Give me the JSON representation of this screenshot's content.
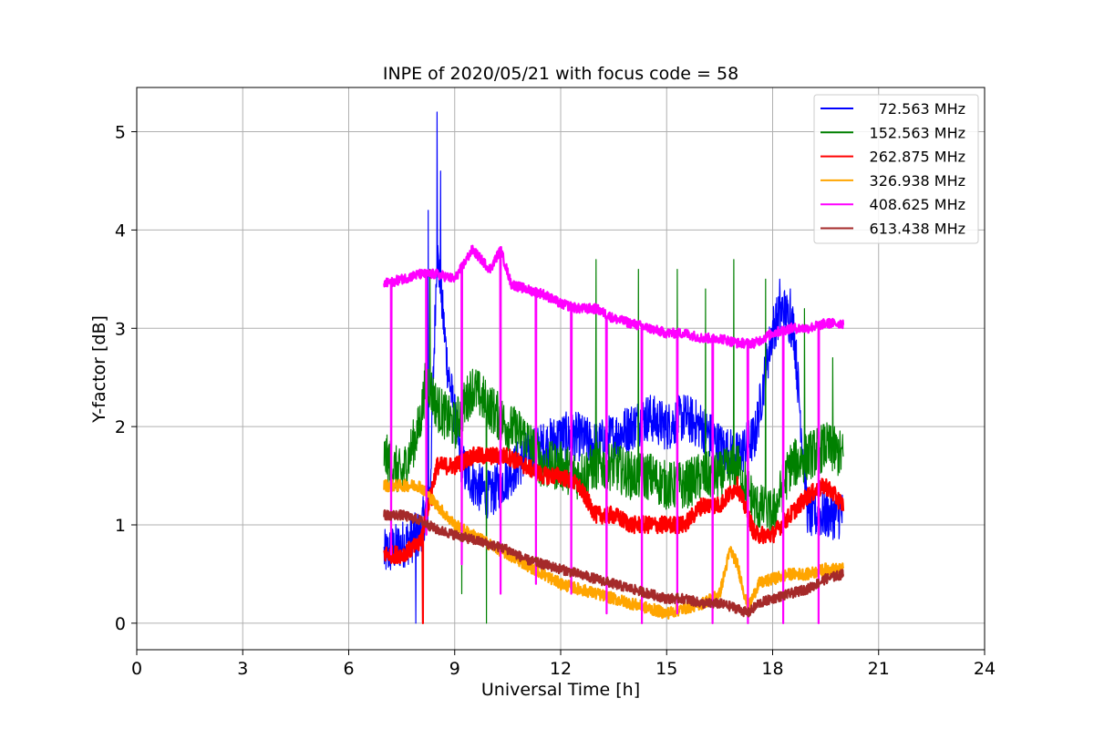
{
  "chart_data": {
    "type": "line",
    "title": "INPE of 2020/05/21 with focus code = 58",
    "xlabel": "Universal Time [h]",
    "ylabel": "Y-factor [dB]",
    "xlim": [
      0,
      24
    ],
    "ylim": [
      -0.27,
      5.45
    ],
    "xticks": [
      0,
      3,
      6,
      9,
      12,
      15,
      18,
      21,
      24
    ],
    "yticks": [
      0,
      1,
      2,
      3,
      4,
      5
    ],
    "xtick_labels": [
      "0",
      "3",
      "6",
      "9",
      "12",
      "15",
      "18",
      "21",
      "24"
    ],
    "ytick_labels": [
      "0",
      "1",
      "2",
      "3",
      "4",
      "5"
    ],
    "grid": true,
    "legend_position": "top-right",
    "series": [
      {
        "name": "72.563 MHz",
        "color": "#0000ff",
        "x": [
          7.0,
          7.5,
          8.0,
          8.3,
          8.5,
          8.8,
          9.2,
          9.6,
          10.0,
          10.5,
          11.0,
          11.5,
          12.0,
          12.5,
          13.0,
          13.5,
          14.0,
          14.5,
          15.0,
          15.5,
          16.0,
          16.5,
          17.0,
          17.5,
          18.0,
          18.3,
          18.6,
          19.0,
          19.5,
          20.0
        ],
        "y": [
          0.7,
          0.8,
          0.9,
          1.3,
          3.8,
          2.6,
          1.6,
          1.4,
          1.3,
          1.5,
          1.7,
          1.8,
          1.9,
          1.9,
          1.8,
          1.9,
          2.0,
          2.1,
          2.0,
          2.1,
          2.0,
          1.8,
          1.7,
          1.9,
          3.0,
          3.2,
          3.0,
          1.1,
          1.1,
          1.1
        ],
        "noise": 0.25,
        "spikes": [
          [
            7.9,
            0.0
          ],
          [
            8.25,
            4.2
          ],
          [
            8.5,
            5.2
          ],
          [
            8.6,
            4.6
          ],
          [
            18.2,
            3.5
          ],
          [
            18.5,
            3.4
          ]
        ]
      },
      {
        "name": "152.563 MHz",
        "color": "#008000",
        "x": [
          7.0,
          7.5,
          8.0,
          8.2,
          8.5,
          9.0,
          9.5,
          10.0,
          10.5,
          11.0,
          11.5,
          12.0,
          12.5,
          13.0,
          13.5,
          14.0,
          14.5,
          15.0,
          15.5,
          16.0,
          16.5,
          17.0,
          17.5,
          18.0,
          18.5,
          19.0,
          19.5,
          20.0
        ],
        "y": [
          1.7,
          1.5,
          2.0,
          2.5,
          2.2,
          2.0,
          2.4,
          2.2,
          2.0,
          1.9,
          1.6,
          1.6,
          1.5,
          1.6,
          1.6,
          1.5,
          1.5,
          1.4,
          1.4,
          1.5,
          1.5,
          1.6,
          1.2,
          1.1,
          1.6,
          1.7,
          1.8,
          1.7
        ],
        "noise": 0.25,
        "spikes": [
          [
            8.3,
            3.6
          ],
          [
            9.2,
            0.3
          ],
          [
            9.9,
            0.0
          ],
          [
            13.0,
            3.7
          ],
          [
            14.2,
            3.6
          ],
          [
            15.3,
            3.6
          ],
          [
            16.1,
            3.4
          ],
          [
            16.9,
            3.7
          ],
          [
            17.8,
            3.5
          ],
          [
            18.9,
            3.2
          ],
          [
            19.7,
            2.7
          ]
        ]
      },
      {
        "name": "262.875 MHz",
        "color": "#ff0000",
        "x": [
          7.0,
          7.5,
          8.0,
          8.5,
          9.0,
          9.5,
          10.0,
          10.5,
          11.0,
          11.5,
          12.0,
          12.5,
          13.0,
          13.5,
          14.0,
          14.5,
          15.0,
          15.5,
          16.0,
          16.5,
          17.0,
          17.5,
          18.0,
          18.5,
          19.0,
          19.5,
          20.0
        ],
        "y": [
          0.7,
          0.7,
          0.8,
          1.6,
          1.6,
          1.7,
          1.7,
          1.7,
          1.6,
          1.5,
          1.5,
          1.4,
          1.1,
          1.1,
          1.0,
          1.0,
          1.0,
          1.0,
          1.2,
          1.2,
          1.4,
          0.9,
          0.9,
          1.1,
          1.3,
          1.4,
          1.2
        ],
        "noise": 0.09,
        "spikes": [
          [
            8.1,
            0.0
          ],
          [
            8.35,
            1.2
          ]
        ]
      },
      {
        "name": "326.938 MHz",
        "color": "#ffa500",
        "x": [
          7.0,
          7.5,
          8.0,
          8.5,
          9.0,
          9.5,
          10.0,
          10.5,
          11.0,
          11.5,
          12.0,
          12.5,
          13.0,
          13.5,
          14.0,
          14.5,
          15.0,
          15.5,
          16.0,
          16.5,
          16.8,
          17.0,
          17.3,
          17.6,
          18.0,
          18.5,
          19.0,
          19.5,
          20.0
        ],
        "y": [
          1.4,
          1.4,
          1.4,
          1.2,
          1.0,
          0.9,
          0.8,
          0.7,
          0.6,
          0.5,
          0.4,
          0.35,
          0.3,
          0.25,
          0.2,
          0.15,
          0.1,
          0.15,
          0.2,
          0.3,
          0.75,
          0.6,
          0.15,
          0.4,
          0.45,
          0.5,
          0.5,
          0.55,
          0.55
        ],
        "noise": 0.06,
        "spikes": []
      },
      {
        "name": "408.625 MHz",
        "color": "#ff00ff",
        "x": [
          7.0,
          7.5,
          8.0,
          8.5,
          9.0,
          9.5,
          10.0,
          10.3,
          10.6,
          11.0,
          11.5,
          12.0,
          12.5,
          13.0,
          13.5,
          14.0,
          14.5,
          15.0,
          15.5,
          16.0,
          16.5,
          17.0,
          17.5,
          18.0,
          18.5,
          19.0,
          19.5,
          20.0
        ],
        "y": [
          3.45,
          3.5,
          3.55,
          3.55,
          3.5,
          3.8,
          3.6,
          3.8,
          3.45,
          3.4,
          3.35,
          3.25,
          3.2,
          3.2,
          3.1,
          3.05,
          3.0,
          2.95,
          2.95,
          2.9,
          2.9,
          2.85,
          2.85,
          2.95,
          3.0,
          3.0,
          3.05,
          3.05
        ],
        "noise": 0.05,
        "spikes": [
          [
            7.2,
            0.7
          ],
          [
            8.2,
            0.9
          ],
          [
            9.2,
            0.6
          ],
          [
            10.3,
            0.3
          ],
          [
            11.3,
            0.4
          ],
          [
            12.3,
            0.3
          ],
          [
            13.3,
            0.1
          ],
          [
            14.3,
            0.0
          ],
          [
            15.3,
            0.1
          ],
          [
            16.3,
            0.0
          ],
          [
            17.3,
            0.0
          ],
          [
            18.3,
            0.0
          ],
          [
            19.3,
            0.0
          ]
        ]
      },
      {
        "name": "613.438 MHz",
        "color": "#a52a2a",
        "x": [
          7.0,
          7.5,
          8.0,
          8.5,
          9.0,
          9.5,
          10.0,
          10.5,
          11.0,
          11.5,
          12.0,
          12.5,
          13.0,
          13.5,
          14.0,
          14.5,
          15.0,
          15.5,
          16.0,
          16.5,
          17.0,
          17.3,
          17.6,
          18.0,
          18.5,
          19.0,
          19.5,
          20.0
        ],
        "y": [
          1.1,
          1.1,
          1.05,
          0.95,
          0.9,
          0.85,
          0.8,
          0.75,
          0.65,
          0.6,
          0.55,
          0.5,
          0.45,
          0.4,
          0.35,
          0.3,
          0.25,
          0.25,
          0.2,
          0.2,
          0.15,
          0.1,
          0.2,
          0.25,
          0.3,
          0.35,
          0.45,
          0.5
        ],
        "noise": 0.05,
        "spikes": []
      }
    ]
  }
}
